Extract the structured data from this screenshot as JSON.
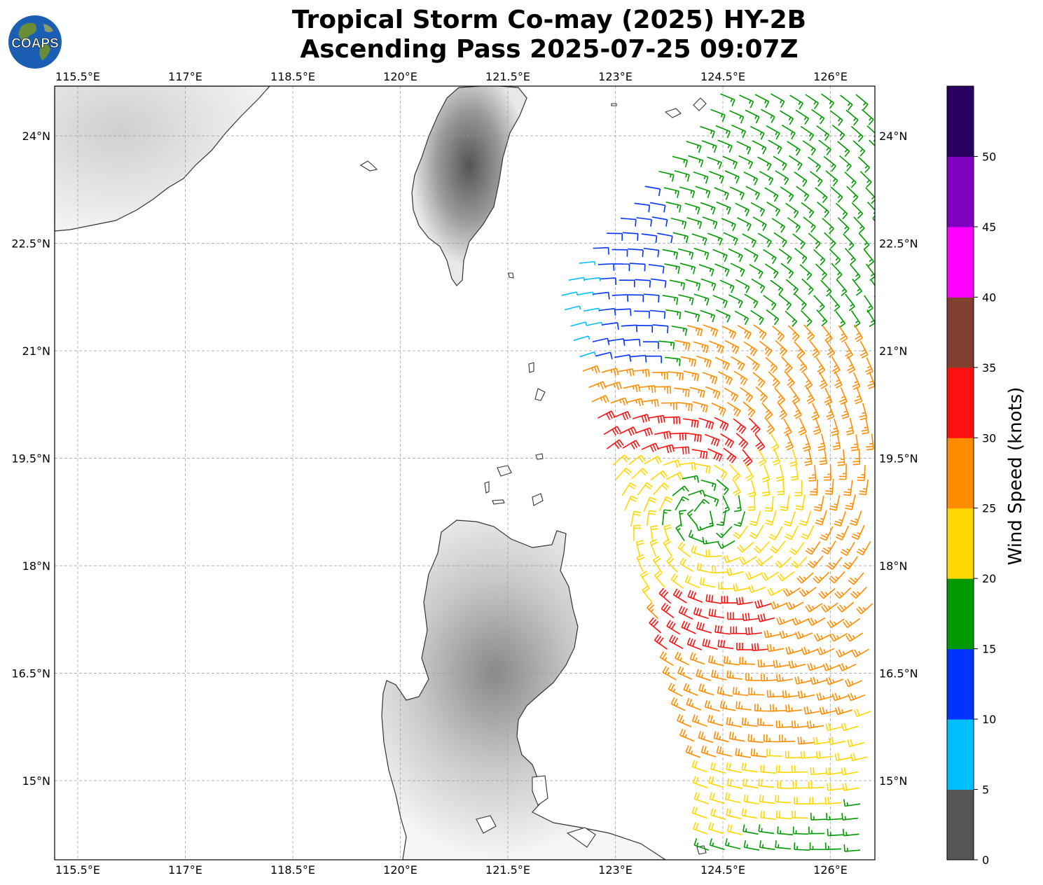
{
  "title": {
    "line1": "Tropical Storm Co-may (2025) HY-2B",
    "line2": "Ascending Pass 2025-07-25 09:07Z"
  },
  "logo": {
    "text": "COAPS",
    "icon": "globe-icon"
  },
  "map": {
    "lon_ticks": [
      "115.5°E",
      "117°E",
      "118.5°E",
      "120°E",
      "121.5°E",
      "123°E",
      "124.5°E",
      "126°E"
    ],
    "lat_ticks": [
      "24°N",
      "22.5°N",
      "21°N",
      "19.5°N",
      "18°N",
      "16.5°N",
      "15°N"
    ],
    "lon_range": [
      115.2,
      126.6
    ],
    "lat_range": [
      13.9,
      24.7
    ],
    "gridlines": true,
    "land_features": [
      "Taiwan",
      "Luzon",
      "South China coast"
    ],
    "wind_barbs": "HY-2B scatterometer wind barbs east of Luzon and Taiwan"
  },
  "colorbar": {
    "title": "Wind Speed (knots)",
    "ticks": [
      "0",
      "5",
      "10",
      "15",
      "20",
      "25",
      "30",
      "35",
      "40",
      "45",
      "50"
    ],
    "colors": [
      "#555555",
      "#00bfff",
      "#0033ff",
      "#009900",
      "#ffd700",
      "#ff8c00",
      "#ff1010",
      "#804030",
      "#ff00ff",
      "#8000c0",
      "#2a0060"
    ]
  }
}
